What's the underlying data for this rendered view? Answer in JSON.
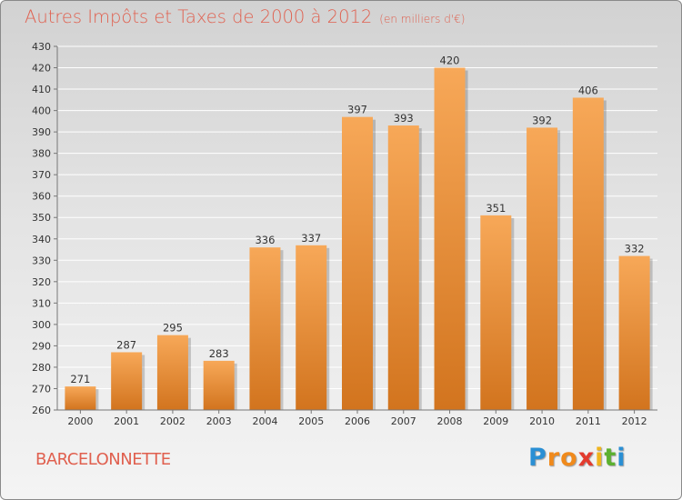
{
  "header": {
    "title": "Autres Impôts et Taxes de 2000 à 2012",
    "unit": "(en milliers d'€)"
  },
  "footer": {
    "city": "BARCELONNETTE",
    "logo_letters": [
      {
        "ch": "P",
        "color": "#2a8fd4"
      },
      {
        "ch": "r",
        "color": "#f08a1c"
      },
      {
        "ch": "o",
        "color": "#f08a1c"
      },
      {
        "ch": "x",
        "color": "#e33b2e"
      },
      {
        "ch": "i",
        "color": "#f0b41c"
      },
      {
        "ch": "t",
        "color": "#5cb030"
      },
      {
        "ch": "i",
        "color": "#2a8fd4"
      }
    ]
  },
  "chart_data": {
    "type": "bar",
    "categories": [
      "2000",
      "2001",
      "2002",
      "2003",
      "2004",
      "2005",
      "2006",
      "2007",
      "2008",
      "2009",
      "2010",
      "2011",
      "2012"
    ],
    "values": [
      271,
      287,
      295,
      283,
      336,
      337,
      397,
      393,
      420,
      351,
      392,
      406,
      332
    ],
    "title": "Autres Impôts et Taxes de 2000 à 2012",
    "xlabel": "",
    "ylabel": "",
    "ylim": [
      260,
      430
    ],
    "ytick_step": 10,
    "grid": true,
    "bar_color_top": "#f7a858",
    "bar_color_bottom": "#d2741e",
    "data_labels": true
  }
}
